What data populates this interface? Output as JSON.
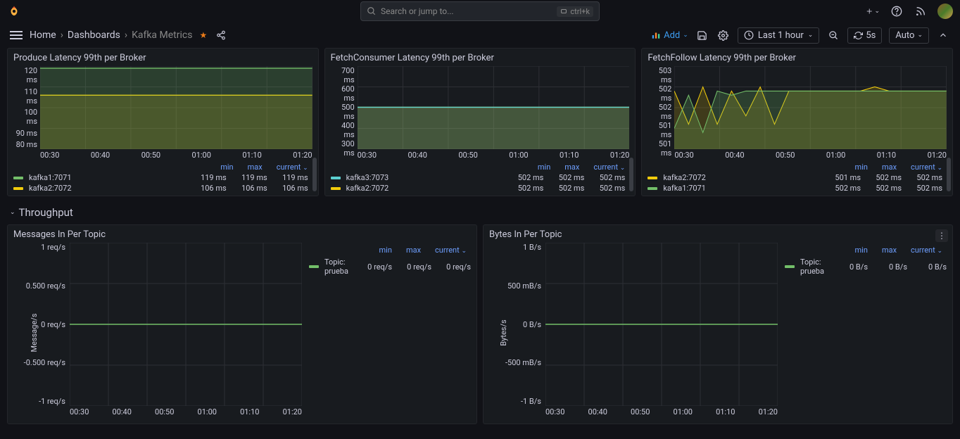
{
  "search": {
    "placeholder": "Search or jump to...",
    "shortcut": "ctrl+k"
  },
  "breadcrumb": {
    "home": "Home",
    "dashboards": "Dashboards",
    "current": "Kafka Metrics"
  },
  "toolbar": {
    "add": "Add",
    "time": "Last 1 hour",
    "refresh": "5s",
    "auto": "Auto"
  },
  "xticks": [
    "00:30",
    "00:40",
    "00:50",
    "01:00",
    "01:10",
    "01:20"
  ],
  "legend_headers": {
    "min": "min",
    "max": "max",
    "current": "current"
  },
  "colors": {
    "green": "#73bf69",
    "yellow": "#f2cc0c",
    "cyan": "#5cd0d0",
    "fill_green": "rgba(115,191,105,0.22)",
    "fill_yellow": "rgba(242,204,12,0.18)",
    "fill_cyan": "rgba(92,208,208,0.18)",
    "blue_text": "#6e9fff"
  },
  "panels": {
    "p1": {
      "title": "Produce Latency 99th per Broker",
      "yticks": [
        "120 ms",
        "110 ms",
        "100 ms",
        "90 ms",
        "80 ms"
      ],
      "series": [
        {
          "name": "kafka1:7071",
          "color_key": "green",
          "min": "119 ms",
          "max": "119 ms",
          "current": "119 ms",
          "y": 0.025
        },
        {
          "name": "kafka2:7072",
          "color_key": "yellow",
          "min": "106 ms",
          "max": "106 ms",
          "current": "106 ms",
          "y": 0.35
        }
      ]
    },
    "p2": {
      "title": "FetchConsumer Latency 99th per Broker",
      "yticks": [
        "700 ms",
        "600 ms",
        "500 ms",
        "400 ms",
        "300 ms"
      ],
      "series": [
        {
          "name": "kafka3:7073",
          "color_key": "cyan",
          "min": "502 ms",
          "max": "502 ms",
          "current": "502 ms",
          "y": 0.495
        },
        {
          "name": "kafka2:7072",
          "color_key": "yellow",
          "min": "502 ms",
          "max": "502 ms",
          "current": "502 ms",
          "y": 0.495
        }
      ]
    },
    "p3": {
      "title": "FetchFollow Latency 99th per Broker",
      "yticks": [
        "503 ms",
        "502 ms",
        "502 ms",
        "501 ms",
        "501 ms"
      ],
      "jagged": true,
      "series": [
        {
          "name": "kafka2:7072",
          "color_key": "yellow",
          "min": "501 ms",
          "max": "502 ms",
          "current": "502 ms",
          "y": 0.3
        },
        {
          "name": "kafka1:7071",
          "color_key": "green",
          "min": "502 ms",
          "max": "502 ms",
          "current": "502 ms",
          "y": 0.3
        }
      ]
    }
  },
  "row_header": "Throughput",
  "big_panels": {
    "b1": {
      "title": "Messages In Per Topic",
      "ylabel": "Message/s",
      "yticks": [
        "1 req/s",
        "0.500 req/s",
        "0 req/s",
        "-0.500 req/s",
        "-1 req/s"
      ],
      "series": [
        {
          "name": "Topic: prueba",
          "color_key": "green",
          "min": "0 req/s",
          "max": "0 req/s",
          "current": "0 req/s"
        }
      ]
    },
    "b2": {
      "title": "Bytes In Per Topic",
      "ylabel": "Bytes/s",
      "yticks": [
        "1 B/s",
        "500 mB/s",
        "0 B/s",
        "-500 mB/s",
        "-1 B/s"
      ],
      "series": [
        {
          "name": "Topic: prueba",
          "color_key": "green",
          "min": "0 B/s",
          "max": "0 B/s",
          "current": "0 B/s"
        }
      ],
      "hover": true
    }
  }
}
